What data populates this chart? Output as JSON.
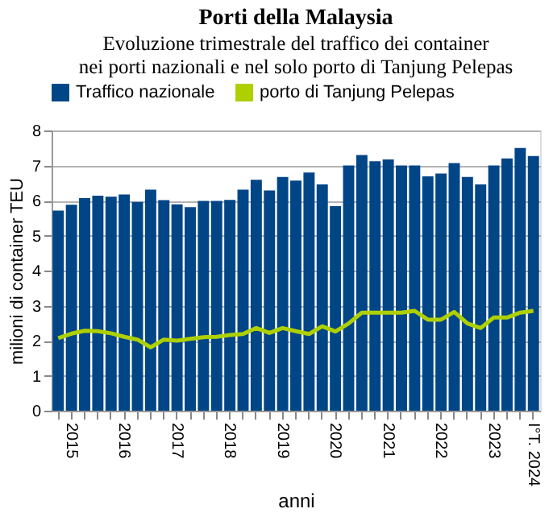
{
  "chart_data": {
    "type": "bar",
    "title": "Porti della Malaysia",
    "subtitle": "Evoluzione trimestrale del traffico dei container\nnei porti nazionali e nel solo porto di Tanjung Pelepas",
    "xlabel": "anni",
    "ylabel": "milioni di container TEU",
    "categories": [
      null,
      "2015",
      null,
      null,
      null,
      "2016",
      null,
      null,
      null,
      "2017",
      null,
      null,
      null,
      "2018",
      null,
      null,
      null,
      "2019",
      null,
      null,
      null,
      "2020",
      null,
      null,
      null,
      "2021",
      null,
      null,
      null,
      "2022",
      null,
      null,
      null,
      "2023",
      null,
      null,
      "I°T. 2024"
    ],
    "series": [
      {
        "name": "Traffico nazionale",
        "color": "#004586",
        "values": [
          5.71,
          5.88,
          6.07,
          6.14,
          6.11,
          6.17,
          5.96,
          6.31,
          6.01,
          5.89,
          5.81,
          5.99,
          5.99,
          6.02,
          6.31,
          6.59,
          6.29,
          6.67,
          6.57,
          6.8,
          6.46,
          5.84,
          7.0,
          7.3,
          7.12,
          7.17,
          7.0,
          7.0,
          6.69,
          6.77,
          7.07,
          6.67,
          6.46,
          7.0,
          7.2,
          7.5,
          7.27
        ]
      },
      {
        "name": "porto di Tanjung Pelepas",
        "type": "line",
        "color": "#aecf00",
        "values": [
          2.07,
          2.2,
          2.28,
          2.27,
          2.21,
          2.11,
          2.03,
          1.81,
          2.03,
          2.0,
          2.05,
          2.1,
          2.11,
          2.16,
          2.19,
          2.36,
          2.22,
          2.36,
          2.27,
          2.19,
          2.41,
          2.26,
          2.49,
          2.8,
          2.8,
          2.8,
          2.8,
          2.85,
          2.6,
          2.6,
          2.82,
          2.49,
          2.36,
          2.66,
          2.66,
          2.8,
          2.85
        ]
      }
    ],
    "ylim": [
      0,
      8
    ],
    "yticks": [
      0,
      1,
      2,
      3,
      4,
      5,
      6,
      7,
      8
    ],
    "grid": "y",
    "legend": "top"
  }
}
